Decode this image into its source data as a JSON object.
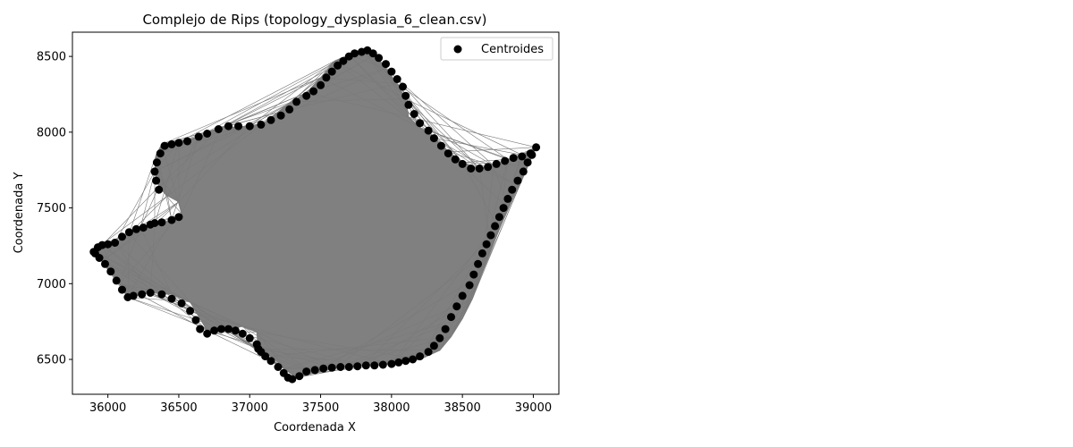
{
  "chart_data": {
    "type": "scatter",
    "title": "Complejo de Rips (topology_dysplasia_6_clean.csv)",
    "xlabel": "Coordenada X",
    "ylabel": "Coordenada Y",
    "xlim": [
      35750,
      39180
    ],
    "ylim": [
      6270,
      8660
    ],
    "xticks": [
      36000,
      36500,
      37000,
      37500,
      38000,
      38500,
      39000
    ],
    "yticks": [
      6500,
      7000,
      7500,
      8000,
      8500
    ],
    "xtick_labels": [
      "36000",
      "36500",
      "37000",
      "37500",
      "38000",
      "38500",
      "39000"
    ],
    "ytick_labels": [
      "6500",
      "7000",
      "7500",
      "8000",
      "8500"
    ],
    "grid": false,
    "legend_position": "top-right",
    "colors": {
      "points": "#000000",
      "complex_fill": "#808080",
      "complex_edges": "#7a7a7a",
      "axes": "#000000"
    },
    "complex": {
      "name": "Rips complex edges",
      "boundary": [
        [
          35900,
          7220
        ],
        [
          35960,
          7255
        ],
        [
          36050,
          7270
        ],
        [
          36150,
          7330
        ],
        [
          36230,
          7370
        ],
        [
          36330,
          7390
        ],
        [
          36450,
          7420
        ],
        [
          36520,
          7460
        ],
        [
          36500,
          7540
        ],
        [
          36420,
          7580
        ],
        [
          36360,
          7640
        ],
        [
          36330,
          7740
        ],
        [
          36340,
          7850
        ],
        [
          36380,
          7920
        ],
        [
          36500,
          7935
        ],
        [
          36640,
          7970
        ],
        [
          36800,
          8030
        ],
        [
          37000,
          8040
        ],
        [
          37100,
          8060
        ],
        [
          37200,
          8130
        ],
        [
          37300,
          8200
        ],
        [
          37400,
          8260
        ],
        [
          37500,
          8360
        ],
        [
          37600,
          8470
        ],
        [
          37700,
          8510
        ],
        [
          37800,
          8540
        ],
        [
          37880,
          8510
        ],
        [
          37960,
          8420
        ],
        [
          38040,
          8320
        ],
        [
          38100,
          8220
        ],
        [
          38120,
          8100
        ],
        [
          38200,
          8030
        ],
        [
          38300,
          7960
        ],
        [
          38400,
          7870
        ],
        [
          38500,
          7800
        ],
        [
          38620,
          7760
        ],
        [
          38720,
          7780
        ],
        [
          38820,
          7820
        ],
        [
          38920,
          7850
        ],
        [
          39020,
          7900
        ],
        [
          38960,
          7780
        ],
        [
          38890,
          7650
        ],
        [
          38820,
          7500
        ],
        [
          38760,
          7360
        ],
        [
          38700,
          7230
        ],
        [
          38630,
          7050
        ],
        [
          38570,
          6900
        ],
        [
          38500,
          6770
        ],
        [
          38420,
          6650
        ],
        [
          38340,
          6560
        ],
        [
          38200,
          6500
        ],
        [
          38000,
          6470
        ],
        [
          37800,
          6460
        ],
        [
          37600,
          6440
        ],
        [
          37450,
          6410
        ],
        [
          37330,
          6380
        ],
        [
          37250,
          6440
        ],
        [
          37150,
          6520
        ],
        [
          37060,
          6570
        ],
        [
          37050,
          6680
        ],
        [
          36950,
          6720
        ],
        [
          36850,
          6690
        ],
        [
          36700,
          6690
        ],
        [
          36630,
          6800
        ],
        [
          36580,
          6880
        ],
        [
          36450,
          6930
        ],
        [
          36300,
          6940
        ],
        [
          36140,
          6910
        ],
        [
          36080,
          7000
        ],
        [
          35960,
          7150
        ],
        [
          35900,
          7220
        ]
      ]
    },
    "series": [
      {
        "name": "Centroides",
        "x": [
          35900,
          35930,
          35960,
          36000,
          36050,
          36100,
          36150,
          36200,
          36250,
          36300,
          36330,
          36380,
          36450,
          36500,
          36360,
          36340,
          36330,
          36345,
          36370,
          36400,
          36450,
          36500,
          36560,
          36640,
          36700,
          36780,
          36850,
          36920,
          37000,
          37080,
          37150,
          37220,
          37280,
          37330,
          37400,
          37450,
          37500,
          37540,
          37580,
          37620,
          37660,
          37700,
          37740,
          37790,
          37830,
          37870,
          37910,
          37960,
          38000,
          38040,
          38080,
          38100,
          38120,
          38160,
          38200,
          38260,
          38300,
          38350,
          38400,
          38450,
          38500,
          38560,
          38620,
          38680,
          38740,
          38800,
          38860,
          38920,
          38980,
          39020,
          38990,
          38960,
          38930,
          38890,
          38850,
          38820,
          38790,
          38760,
          38730,
          38700,
          38670,
          38640,
          38610,
          38580,
          38550,
          38500,
          38460,
          38420,
          38380,
          38340,
          38300,
          38260,
          38200,
          38150,
          38100,
          38050,
          38000,
          37940,
          37880,
          37820,
          37760,
          37700,
          37640,
          37580,
          37520,
          37460,
          37400,
          37350,
          37300,
          37270,
          37240,
          37200,
          37150,
          37110,
          37080,
          37060,
          37050,
          37000,
          36950,
          36900,
          36850,
          36800,
          36750,
          36700,
          36650,
          36620,
          36580,
          36520,
          36450,
          36380,
          36300,
          36240,
          36180,
          36140,
          36100,
          36060,
          36020,
          35980,
          35940,
          35910
        ],
        "y": [
          7210,
          7240,
          7255,
          7260,
          7270,
          7310,
          7340,
          7360,
          7370,
          7390,
          7400,
          7405,
          7420,
          7440,
          7620,
          7680,
          7740,
          7800,
          7860,
          7910,
          7920,
          7930,
          7940,
          7970,
          7990,
          8020,
          8040,
          8040,
          8040,
          8050,
          8080,
          8110,
          8150,
          8200,
          8240,
          8270,
          8310,
          8360,
          8400,
          8440,
          8470,
          8500,
          8520,
          8530,
          8540,
          8520,
          8490,
          8450,
          8400,
          8350,
          8300,
          8240,
          8180,
          8120,
          8060,
          8010,
          7960,
          7910,
          7860,
          7820,
          7790,
          7760,
          7760,
          7770,
          7790,
          7810,
          7830,
          7840,
          7860,
          7900,
          7850,
          7800,
          7740,
          7680,
          7620,
          7560,
          7500,
          7440,
          7380,
          7320,
          7260,
          7200,
          7130,
          7060,
          6990,
          6920,
          6850,
          6780,
          6700,
          6640,
          6590,
          6550,
          6520,
          6500,
          6490,
          6480,
          6470,
          6465,
          6460,
          6460,
          6455,
          6450,
          6450,
          6445,
          6440,
          6430,
          6420,
          6390,
          6370,
          6380,
          6410,
          6450,
          6490,
          6520,
          6550,
          6570,
          6600,
          6640,
          6670,
          6690,
          6700,
          6700,
          6690,
          6670,
          6700,
          6760,
          6820,
          6870,
          6900,
          6930,
          6940,
          6930,
          6920,
          6910,
          6960,
          7020,
          7080,
          7130,
          7170,
          7200
        ]
      }
    ]
  }
}
